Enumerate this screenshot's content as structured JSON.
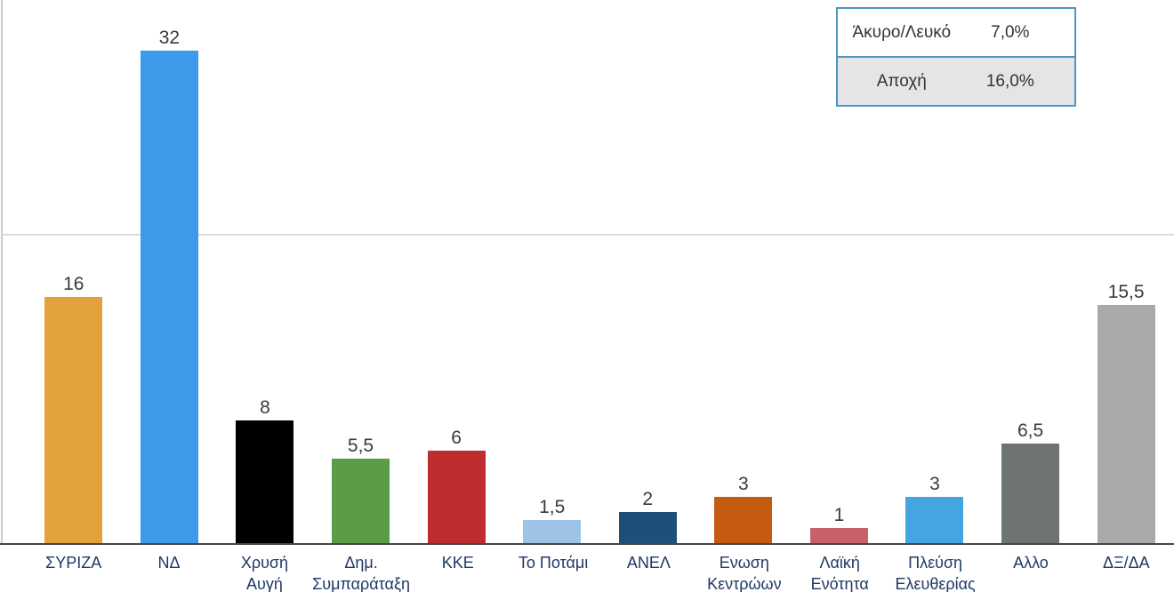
{
  "chart_data": {
    "type": "bar",
    "title": "",
    "xlabel": "",
    "ylabel": "",
    "categories": [
      "ΣΥΡΙΖΑ",
      "ΝΔ",
      "Χρυσή Αυγή",
      "Δημ. Συμπαράταξη",
      "ΚΚΕ",
      "Το Ποτάμι",
      "ΑΝΕΛ",
      "Ενωση Κεντρώων",
      "Λαϊκή Ενότητα",
      "Πλεύση Ελευθερίας",
      "Αλλο",
      "ΔΞ/ΔΑ"
    ],
    "category_lines": [
      [
        "ΣΥΡΙΖΑ"
      ],
      [
        "ΝΔ"
      ],
      [
        "Χρυσή",
        "Αυγή"
      ],
      [
        "Δημ.",
        "Συμπαράταξη"
      ],
      [
        "ΚΚΕ"
      ],
      [
        "Το Ποτάμι"
      ],
      [
        "ΑΝΕΛ"
      ],
      [
        "Ενωση",
        "Κεντρώων"
      ],
      [
        "Λαϊκή",
        "Ενότητα"
      ],
      [
        "Πλεύση",
        "Ελευθερίας"
      ],
      [
        "Αλλο"
      ],
      [
        "ΔΞ/ΔΑ"
      ]
    ],
    "values": [
      16,
      32,
      8,
      5.5,
      6,
      1.5,
      2,
      3,
      1,
      3,
      6.5,
      15.5
    ],
    "value_labels": [
      "16",
      "32",
      "8",
      "5,5",
      "6",
      "1,5",
      "2",
      "3",
      "1",
      "3",
      "6,5",
      "15,5"
    ],
    "bar_colors": [
      "#E2A13C",
      "#3D99EA",
      "#000000",
      "#5A9C47",
      "#BE2C30",
      "#9DC3E6",
      "#1F4E79",
      "#C55A11",
      "#C8606A",
      "#45A5E1",
      "#6D7472",
      "#A9A9A9"
    ],
    "category_label_color": "#1F3864",
    "value_label_color": "#3A3A3A",
    "axis_color": "#464646",
    "gridline_color": "#DCDCDC",
    "gridline_value": 20,
    "ylim": [
      0,
      35.3
    ],
    "grid": "single horizontal gridline at value 20",
    "legend_position": "none"
  },
  "summary_table": {
    "border_color": "#4E97C4",
    "alt_row_bg": "#E5E5E7",
    "rows": [
      {
        "label": "Άκυρο/Λευκό",
        "value": "7,0%"
      },
      {
        "label": "Αποχή",
        "value": "16,0%"
      }
    ]
  }
}
